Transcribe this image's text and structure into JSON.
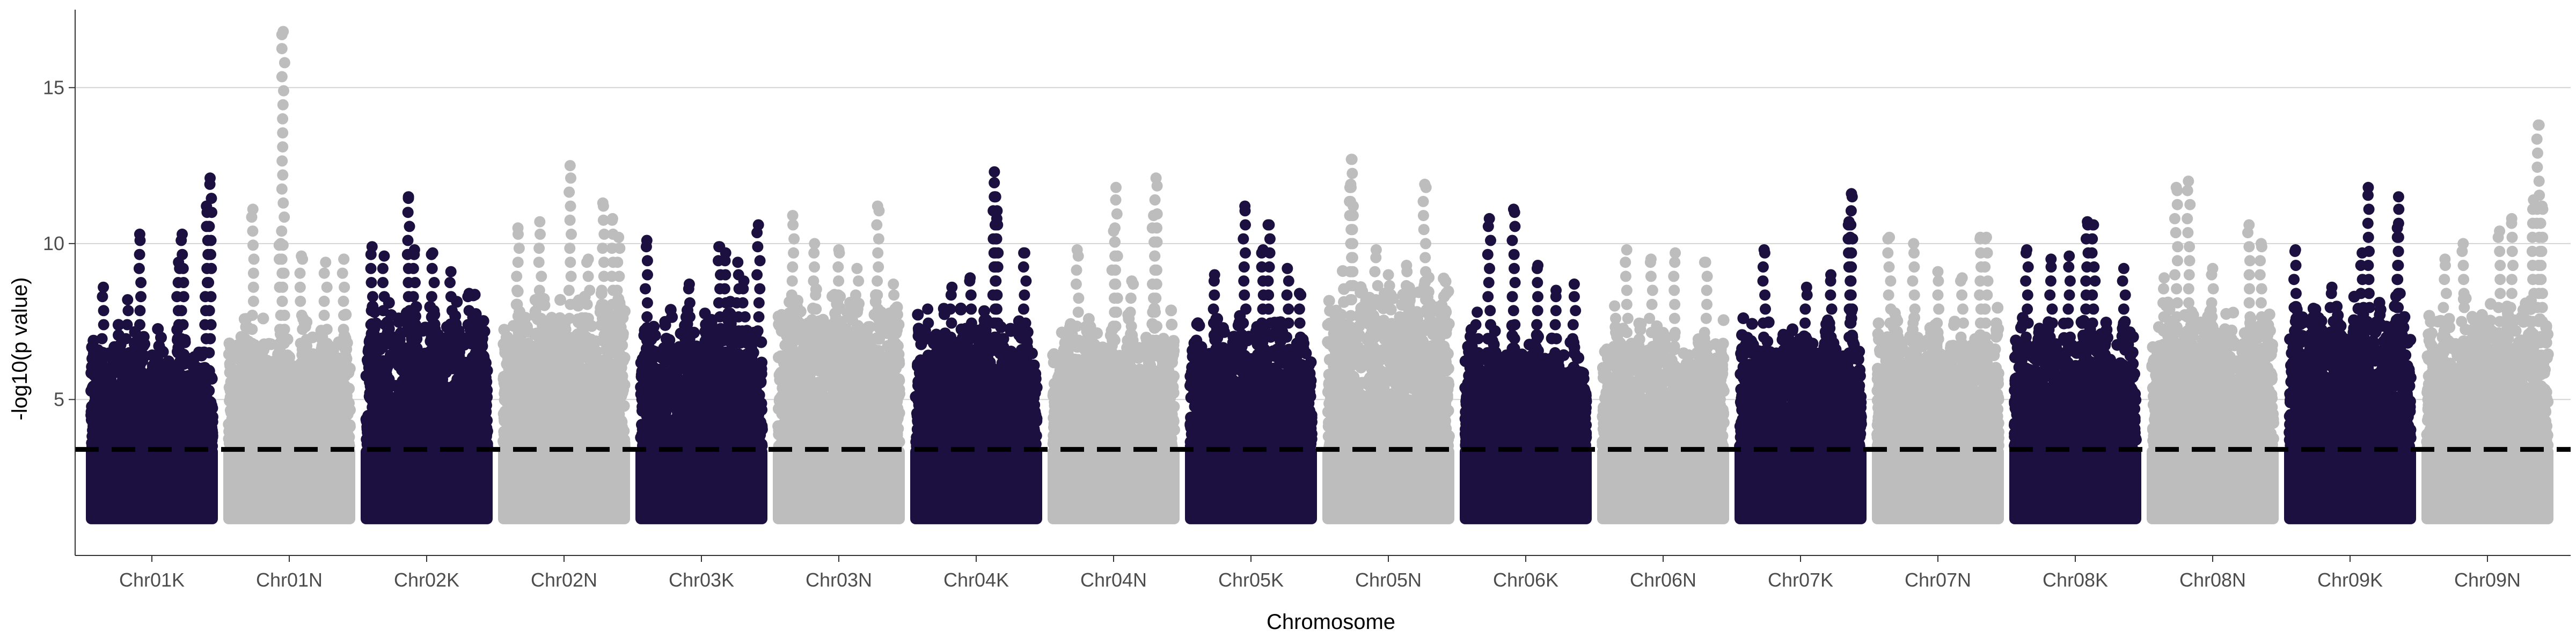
{
  "chart_data": {
    "type": "scatter",
    "subtype": "manhattan",
    "title": "",
    "xlabel": "Chromosome",
    "ylabel": "-log10(p value)",
    "ylim": [
      0,
      17.5
    ],
    "yticks": [
      5,
      10,
      15
    ],
    "grid": "horizontal major lines at y ticks",
    "threshold": {
      "value": 3.4,
      "style": "dashed",
      "color": "#000000"
    },
    "colors": {
      "odd": "#1c1040",
      "even": "#bdbdbd",
      "grid": "#d4d4d4"
    },
    "base_min": 1.0,
    "base_max": 3.5,
    "chromosomes": [
      {
        "name": "Chr01K",
        "cap": 6.5,
        "peaks": [
          {
            "x": 0.4,
            "y": 10.3
          },
          {
            "x": 0.75,
            "y": 10.3
          },
          {
            "x": 0.98,
            "y": 12.1
          },
          {
            "x": 0.95,
            "y": 11.2
          },
          {
            "x": 0.72,
            "y": 9.4
          },
          {
            "x": 0.1,
            "y": 8.6
          },
          {
            "x": 0.3,
            "y": 8.2
          }
        ]
      },
      {
        "name": "Chr01N",
        "cap": 6.8,
        "peaks": [
          {
            "x": 0.45,
            "y": 16.8
          },
          {
            "x": 0.2,
            "y": 11.1
          },
          {
            "x": 0.43,
            "y": 10.0
          },
          {
            "x": 0.6,
            "y": 9.6
          },
          {
            "x": 0.8,
            "y": 9.4
          },
          {
            "x": 0.95,
            "y": 9.5
          }
        ]
      },
      {
        "name": "Chr02K",
        "cap": 7.4,
        "peaks": [
          {
            "x": 0.35,
            "y": 11.5
          },
          {
            "x": 0.05,
            "y": 9.9
          },
          {
            "x": 0.4,
            "y": 9.8
          },
          {
            "x": 0.55,
            "y": 9.7
          },
          {
            "x": 0.15,
            "y": 9.6
          },
          {
            "x": 0.7,
            "y": 9.1
          },
          {
            "x": 0.85,
            "y": 8.4
          }
        ]
      },
      {
        "name": "Chr02N",
        "cap": 7.6,
        "peaks": [
          {
            "x": 0.55,
            "y": 12.5
          },
          {
            "x": 0.82,
            "y": 11.3
          },
          {
            "x": 0.9,
            "y": 10.8
          },
          {
            "x": 0.3,
            "y": 10.7
          },
          {
            "x": 0.12,
            "y": 10.5
          },
          {
            "x": 0.95,
            "y": 10.2
          },
          {
            "x": 0.7,
            "y": 9.5
          }
        ]
      },
      {
        "name": "Chr03K",
        "cap": 7.2,
        "peaks": [
          {
            "x": 0.05,
            "y": 10.1
          },
          {
            "x": 0.97,
            "y": 10.6
          },
          {
            "x": 0.65,
            "y": 9.9
          },
          {
            "x": 0.7,
            "y": 9.7
          },
          {
            "x": 0.8,
            "y": 9.4
          },
          {
            "x": 0.4,
            "y": 8.7
          },
          {
            "x": 0.85,
            "y": 8.8
          }
        ]
      },
      {
        "name": "Chr03N",
        "cap": 7.9,
        "peaks": [
          {
            "x": 0.12,
            "y": 10.9
          },
          {
            "x": 0.82,
            "y": 11.2
          },
          {
            "x": 0.3,
            "y": 10.0
          },
          {
            "x": 0.5,
            "y": 9.8
          },
          {
            "x": 0.65,
            "y": 9.2
          },
          {
            "x": 0.95,
            "y": 8.7
          }
        ]
      },
      {
        "name": "Chr04K",
        "cap": 7.0,
        "peaks": [
          {
            "x": 0.65,
            "y": 12.3
          },
          {
            "x": 0.66,
            "y": 11.5
          },
          {
            "x": 0.67,
            "y": 10.8
          },
          {
            "x": 0.9,
            "y": 9.7
          },
          {
            "x": 0.45,
            "y": 8.9
          },
          {
            "x": 0.3,
            "y": 8.6
          },
          {
            "x": 0.1,
            "y": 7.9
          }
        ]
      },
      {
        "name": "Chr04N",
        "cap": 6.9,
        "peaks": [
          {
            "x": 0.52,
            "y": 11.8
          },
          {
            "x": 0.85,
            "y": 12.1
          },
          {
            "x": 0.83,
            "y": 10.9
          },
          {
            "x": 0.2,
            "y": 9.8
          },
          {
            "x": 0.5,
            "y": 10.4
          },
          {
            "x": 0.65,
            "y": 8.8
          }
        ]
      },
      {
        "name": "Chr05K",
        "cap": 7.0,
        "peaks": [
          {
            "x": 0.45,
            "y": 11.2
          },
          {
            "x": 0.65,
            "y": 10.6
          },
          {
            "x": 0.6,
            "y": 9.8
          },
          {
            "x": 0.2,
            "y": 9.0
          },
          {
            "x": 0.8,
            "y": 9.2
          },
          {
            "x": 0.9,
            "y": 8.4
          }
        ]
      },
      {
        "name": "Chr05N",
        "cap": 8.2,
        "peaks": [
          {
            "x": 0.2,
            "y": 12.7
          },
          {
            "x": 0.8,
            "y": 11.9
          },
          {
            "x": 0.19,
            "y": 11.9
          },
          {
            "x": 0.21,
            "y": 11.2
          },
          {
            "x": 0.4,
            "y": 9.8
          },
          {
            "x": 0.5,
            "y": 9.0
          },
          {
            "x": 0.65,
            "y": 9.3
          }
        ]
      },
      {
        "name": "Chr06K",
        "cap": 6.5,
        "peaks": [
          {
            "x": 0.2,
            "y": 10.8
          },
          {
            "x": 0.4,
            "y": 11.1
          },
          {
            "x": 0.6,
            "y": 9.3
          },
          {
            "x": 0.9,
            "y": 8.7
          },
          {
            "x": 0.75,
            "y": 8.5
          },
          {
            "x": 0.1,
            "y": 7.8
          }
        ]
      },
      {
        "name": "Chr06N",
        "cap": 6.7,
        "peaks": [
          {
            "x": 0.2,
            "y": 9.8
          },
          {
            "x": 0.4,
            "y": 9.5
          },
          {
            "x": 0.6,
            "y": 9.7
          },
          {
            "x": 0.85,
            "y": 9.4
          },
          {
            "x": 0.1,
            "y": 8.0
          }
        ]
      },
      {
        "name": "Chr07K",
        "cap": 7.0,
        "peaks": [
          {
            "x": 0.2,
            "y": 9.8
          },
          {
            "x": 0.92,
            "y": 11.6
          },
          {
            "x": 0.9,
            "y": 10.7
          },
          {
            "x": 0.91,
            "y": 10.2
          },
          {
            "x": 0.75,
            "y": 9.0
          },
          {
            "x": 0.55,
            "y": 8.6
          }
        ]
      },
      {
        "name": "Chr07N",
        "cap": 7.0,
        "peaks": [
          {
            "x": 0.1,
            "y": 10.2
          },
          {
            "x": 0.3,
            "y": 10.0
          },
          {
            "x": 0.85,
            "y": 10.2
          },
          {
            "x": 0.9,
            "y": 10.2
          },
          {
            "x": 0.5,
            "y": 9.1
          },
          {
            "x": 0.7,
            "y": 8.9
          }
        ]
      },
      {
        "name": "Chr08K",
        "cap": 7.0,
        "peaks": [
          {
            "x": 0.1,
            "y": 9.8
          },
          {
            "x": 0.6,
            "y": 10.7
          },
          {
            "x": 0.65,
            "y": 10.6
          },
          {
            "x": 0.45,
            "y": 9.6
          },
          {
            "x": 0.3,
            "y": 9.5
          },
          {
            "x": 0.9,
            "y": 9.2
          }
        ]
      },
      {
        "name": "Chr08N",
        "cap": 7.2,
        "peaks": [
          {
            "x": 0.2,
            "y": 11.8
          },
          {
            "x": 0.3,
            "y": 12.0
          },
          {
            "x": 0.8,
            "y": 10.6
          },
          {
            "x": 0.5,
            "y": 9.2
          },
          {
            "x": 0.9,
            "y": 10.0
          },
          {
            "x": 0.1,
            "y": 8.9
          }
        ]
      },
      {
        "name": "Chr09K",
        "cap": 7.5,
        "peaks": [
          {
            "x": 0.05,
            "y": 9.8
          },
          {
            "x": 0.65,
            "y": 11.8
          },
          {
            "x": 0.9,
            "y": 11.5
          },
          {
            "x": 0.89,
            "y": 10.5
          },
          {
            "x": 0.6,
            "y": 9.7
          },
          {
            "x": 0.35,
            "y": 8.6
          }
        ]
      },
      {
        "name": "Chr09N",
        "cap": 7.5,
        "peaks": [
          {
            "x": 0.92,
            "y": 13.8
          },
          {
            "x": 0.88,
            "y": 11.4
          },
          {
            "x": 0.95,
            "y": 11.2
          },
          {
            "x": 0.7,
            "y": 10.8
          },
          {
            "x": 0.6,
            "y": 10.4
          },
          {
            "x": 0.3,
            "y": 10.0
          },
          {
            "x": 0.15,
            "y": 9.5
          }
        ]
      }
    ]
  }
}
